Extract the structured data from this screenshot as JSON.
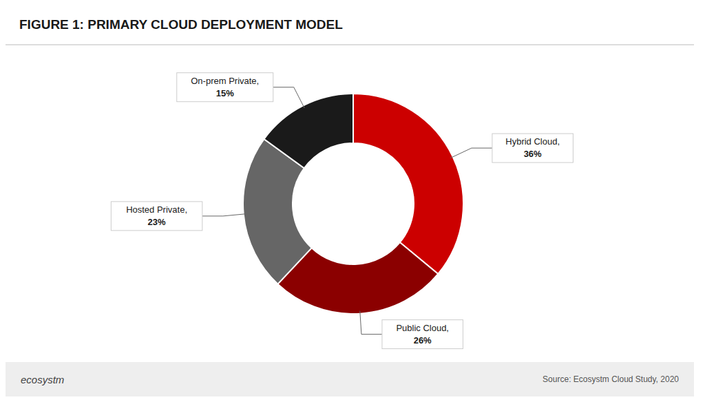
{
  "chart_data": {
    "type": "pie",
    "title": "FIGURE 1: PRIMARY CLOUD DEPLOYMENT MODEL",
    "categories": [
      "Hybrid Cloud,",
      "Public Cloud,",
      "Hosted Private,",
      "On-prem Private,"
    ],
    "values": [
      36,
      26,
      23,
      15
    ],
    "value_labels": [
      "36%",
      "26%",
      "23%",
      "15%"
    ],
    "colors": [
      "#CC0000",
      "#8B0000",
      "#666666",
      "#1A1A1A"
    ],
    "data_labels": true,
    "annotations": [
      "ecosystm",
      "Source: Ecosystm Cloud Study, 2020"
    ]
  }
}
